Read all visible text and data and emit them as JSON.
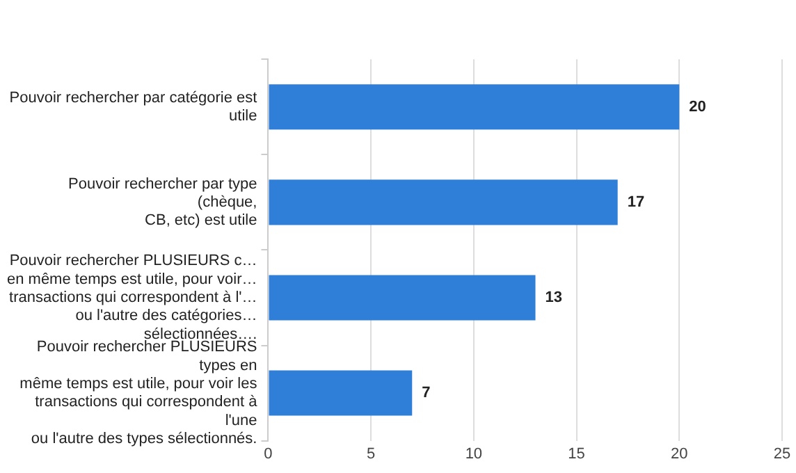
{
  "chart_data": {
    "type": "bar",
    "orientation": "horizontal",
    "categories": [
      "Pouvoir rechercher par catégorie est\nutile",
      "Pouvoir rechercher par type\n(chèque,\nCB, etc) est utile",
      "Pouvoir rechercher PLUSIEURS c…\nen même temps est utile, pour voir…\ntransactions qui correspondent à l'…\nou l'autre des catégories…\nsélectionnées….",
      "Pouvoir rechercher PLUSIEURS\ntypes en\nmême temps est utile, pour voir les\ntransactions qui correspondent à\nl'une\nou l'autre des types sélectionnés."
    ],
    "values": [
      20,
      17,
      13,
      7
    ],
    "color": "#2f7ed8",
    "xlim": [
      0,
      25
    ],
    "xticks": [
      0,
      5,
      10,
      15,
      20,
      25
    ],
    "grid": "x",
    "data_labels": true,
    "legend": false
  }
}
